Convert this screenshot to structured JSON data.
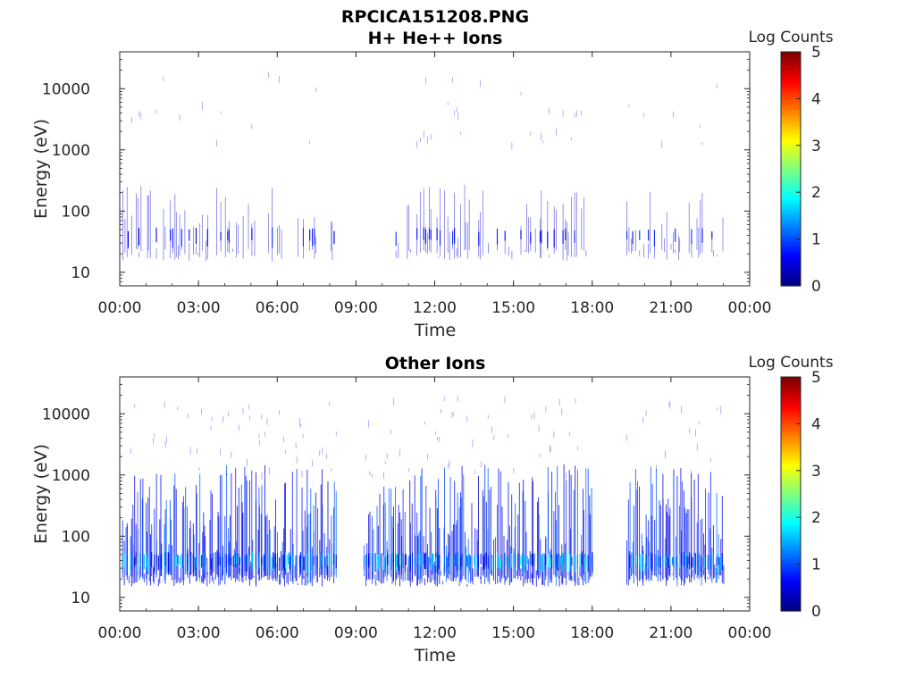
{
  "figure": {
    "title": "RPCICA151208.PNG"
  },
  "colors": {
    "axis": "#262626",
    "background": "#ffffff",
    "colormap": "jet"
  },
  "chart_data": [
    {
      "type": "heatmap",
      "title": "H+ He++ Ions",
      "xlabel": "Time",
      "ylabel": "Energy (eV)",
      "xticks": [
        "00:00",
        "03:00",
        "06:00",
        "09:00",
        "12:00",
        "15:00",
        "18:00",
        "21:00",
        "00:00"
      ],
      "xlim_hours": [
        0,
        24
      ],
      "yscale": "log",
      "yticks": [
        "10",
        "100",
        "1000",
        "10000"
      ],
      "ylim": [
        6,
        40000
      ],
      "colorbar": {
        "label": "Log Counts",
        "ticks": [
          "0",
          "1",
          "2",
          "3",
          "4",
          "5"
        ],
        "range": [
          0,
          5
        ]
      },
      "data_intervals_hours": [
        [
          0.1,
          8.2
        ],
        [
          10.3,
          17.9
        ],
        [
          19.3,
          23.0
        ]
      ],
      "typical_energy_range_eV": [
        15,
        800
      ],
      "typical_log_counts": [
        0.2,
        0.9
      ],
      "grid": false
    },
    {
      "type": "heatmap",
      "title": "Other Ions",
      "xlabel": "Time",
      "ylabel": "Energy (eV)",
      "xticks": [
        "00:00",
        "03:00",
        "06:00",
        "09:00",
        "12:00",
        "15:00",
        "18:00",
        "21:00",
        "00:00"
      ],
      "xlim_hours": [
        0,
        24
      ],
      "yscale": "log",
      "yticks": [
        "10",
        "100",
        "1000",
        "10000"
      ],
      "ylim": [
        6,
        40000
      ],
      "colorbar": {
        "label": "Log Counts",
        "ticks": [
          "0",
          "1",
          "2",
          "3",
          "4",
          "5"
        ],
        "range": [
          0,
          5
        ]
      },
      "data_intervals_hours": [
        [
          0.1,
          8.2
        ],
        [
          9.3,
          18.0
        ],
        [
          19.3,
          23.0
        ]
      ],
      "typical_energy_range_eV": [
        15,
        1500
      ],
      "typical_log_counts": [
        0.3,
        1.9
      ],
      "grid": false
    }
  ]
}
